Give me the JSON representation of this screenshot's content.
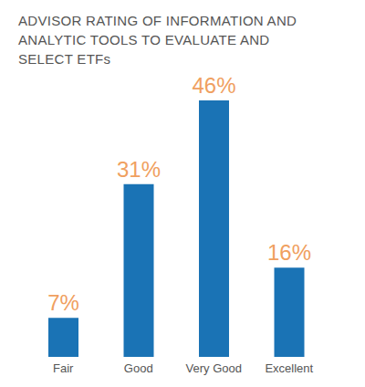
{
  "chart_data": {
    "type": "bar",
    "title": "ADVISOR RATING OF INFORMATION AND ANALYTIC TOOLS TO EVALUATE AND SELECT ETFs",
    "categories": [
      "Fair",
      "Good",
      "Very Good",
      "Excellent"
    ],
    "values": [
      7,
      31,
      46,
      16
    ],
    "value_labels": [
      "7%",
      "31%",
      "46%",
      "16%"
    ],
    "color": "#1a73b5",
    "data_labels": true,
    "tick_labels": "x",
    "grid": false
  }
}
